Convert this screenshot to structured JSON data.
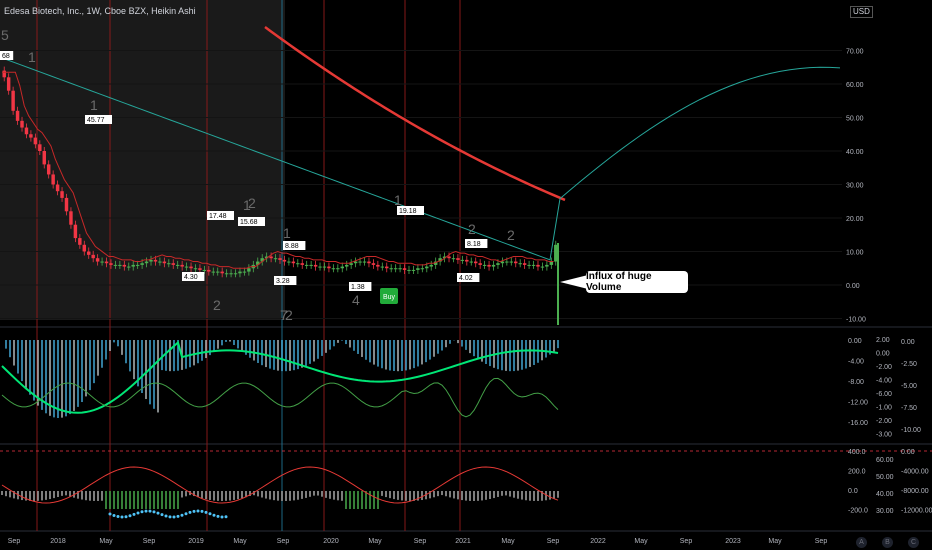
{
  "header": {
    "title": "Edesa Biotech, Inc., 1W, Cboe BZX, Heikin Ashi",
    "currency": "USD"
  },
  "annotation": {
    "text": "Influx of huge Volume",
    "buy_label": "Buy"
  },
  "footer_buttons": [
    "A",
    "B",
    "C"
  ],
  "colors": {
    "up": "#4caf50",
    "down": "#f23645",
    "ma_red": "#e53935",
    "ma_teal": "#26a69a"
  },
  "chart_data": {
    "type": "candlestick",
    "title": "Edesa Biotech, Inc., 1W, Cboe BZX, Heikin Ashi",
    "x_ticks": [
      "Sep",
      "2018",
      "May",
      "Sep",
      "2019",
      "May",
      "Sep",
      "2020",
      "May",
      "Sep",
      "2021",
      "May",
      "Sep",
      "2022",
      "May",
      "Sep",
      "2023",
      "May",
      "Sep"
    ],
    "price_axis": {
      "ticks": [
        "70.00",
        "60.00",
        "50.00",
        "40.00",
        "30.00",
        "20.00",
        "10.00",
        "0.00",
        "-10.00"
      ],
      "ylim": [
        -10,
        75
      ]
    },
    "price_close": [
      62,
      58,
      52,
      49,
      47,
      45,
      44,
      42,
      40,
      36,
      33,
      30,
      28,
      26,
      22,
      18,
      14,
      12,
      10,
      9,
      8,
      7,
      7,
      6.5,
      6,
      6,
      6,
      5.5,
      5.5,
      6,
      6,
      6.5,
      7,
      7.5,
      7,
      7,
      6.5,
      6.5,
      6,
      6,
      5.5,
      5.5,
      5,
      5,
      4.5,
      4.5,
      4,
      4,
      4,
      3.5,
      3.5,
      3.5,
      3.5,
      4,
      4,
      5,
      6,
      7,
      8,
      8.5,
      8,
      8,
      7.5,
      7,
      7,
      6.5,
      6.5,
      6,
      6,
      6,
      5.5,
      5.5,
      5.5,
      5,
      5,
      5,
      5.5,
      6,
      6.5,
      7,
      7,
      7,
      6.5,
      6,
      5.5,
      5.5,
      5,
      5,
      5,
      5,
      4.5,
      4.5,
      4.5,
      5,
      5,
      5.5,
      6,
      7,
      8,
      8.5,
      8,
      8,
      7.5,
      7.5,
      7,
      7,
      6.5,
      6,
      6,
      5.5,
      6,
      6.5,
      7,
      7,
      7,
      6.5,
      6.5,
      6,
      6,
      6,
      5.5,
      5.5,
      6,
      7,
      12
    ],
    "price_labels": [
      "68",
      "45.77",
      "17.48",
      "15.68",
      "8.88",
      "4.30",
      "3.28",
      "1.38",
      "19.18",
      "8.18",
      "4.02"
    ],
    "wave_labels": [
      "5",
      "1",
      "1",
      "2",
      "1",
      "2",
      "1",
      "2",
      "2",
      "4",
      "2",
      "1",
      "7"
    ],
    "osc1_ticks": [
      "0.00",
      "-4.00",
      "-8.00",
      "-12.00",
      "-16.00"
    ],
    "osc1_mid_ticks": [
      "2.00",
      "0.00",
      "-2.00",
      "-4.00",
      "-6.00",
      "-1.00",
      "-2.00",
      "-3.00"
    ],
    "osc1_right_ticks": [
      "0.00",
      "-2.50",
      "-5.00",
      "-7.50",
      "-10.00"
    ],
    "osc2_ticks": [
      "400.0",
      "200.0",
      "0.0",
      "-200.0"
    ],
    "osc2_mid_ticks": [
      "60.00",
      "50.00",
      "40.00",
      "30.00"
    ],
    "osc2_right_ticks": [
      "0.00",
      "-4000.00",
      "-8000.00",
      "-12000.00"
    ]
  }
}
